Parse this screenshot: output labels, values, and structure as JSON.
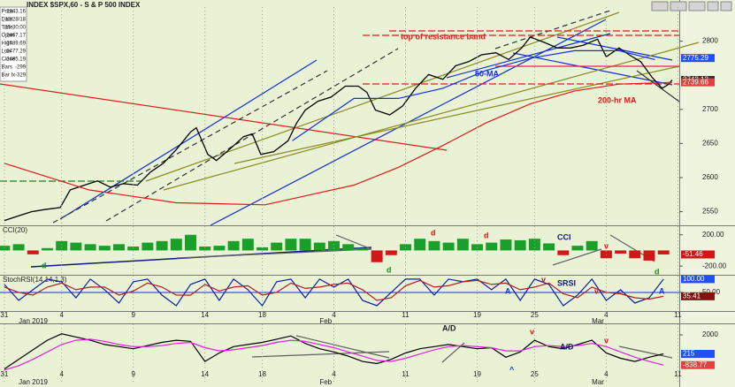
{
  "chart_data": [
    {
      "type": "line",
      "title": "INDEX $SPX,60 - S & P 500 INDEX",
      "info": [
        {
          "label": "Price",
          "value": 2843.16
        },
        {
          "label": "Date",
          "value": "12/28/18"
        },
        {
          "label": "Time",
          "value": "15:30:00"
        },
        {
          "label": "Open",
          "value": 2467.17
        },
        {
          "label": "High",
          "value": 2489.69
        },
        {
          "label": "Low",
          "value": 2477.29
        },
        {
          "label": "Close",
          "value": 2485.19
        },
        {
          "label": "Bars",
          "value": -299
        },
        {
          "label": "Bar Ix",
          "value": -329
        }
      ],
      "xlim": [
        -0.3,
        47.1
      ],
      "ylim": [
        2530,
        2850
      ],
      "yticks": [
        2550,
        2600,
        2650,
        2700,
        2800
      ],
      "series": [
        {
          "color": "#000000",
          "x": [
            0,
            1,
            1.9,
            2.8,
            3.9,
            4.6,
            5.6,
            6.5,
            7.4,
            8.3,
            9.3,
            10.2,
            11.1,
            12,
            13,
            13.4,
            14.2,
            14.8,
            15.7,
            16.7,
            17.3,
            17.9,
            18.8,
            19.8,
            20.4,
            21,
            21.9,
            22.8,
            23.8,
            24.7,
            25.3,
            25.9,
            26.9,
            27.8,
            28.7,
            29.6,
            30.6,
            31.5,
            32.4,
            33.3,
            34.3,
            35.2,
            36.1,
            36.7,
            37.7,
            38.6,
            39.5,
            40.4,
            41.4,
            42,
            42.9,
            43.6,
            44.4,
            45.2,
            45.9,
            46.3,
            46.6
          ],
          "values": [
            2537,
            2544,
            2550,
            2553,
            2556,
            2582,
            2589,
            2595,
            2586,
            2591,
            2589,
            2608,
            2621,
            2641,
            2667,
            2673,
            2634,
            2625,
            2641,
            2660,
            2664,
            2634,
            2638,
            2654,
            2680,
            2699,
            2712,
            2718,
            2734,
            2734,
            2725,
            2699,
            2692,
            2705,
            2731,
            2751,
            2744,
            2764,
            2770,
            2780,
            2783,
            2773,
            2790,
            2806,
            2798,
            2790,
            2790,
            2794,
            2803,
            2777,
            2790,
            2780,
            2770,
            2747,
            2731,
            2736,
            2743
          ]
        },
        {
          "name": "50-MA",
          "color": "#1030e0",
          "x": [
            20.1,
            24.4,
            27.5,
            30.6,
            33.6,
            36.7,
            39.8,
            42.9,
            45.4
          ],
          "values": [
            2654,
            2716,
            2716,
            2731,
            2757,
            2775,
            2786,
            2786,
            2773
          ]
        },
        {
          "name": "200-hr MA",
          "color": "#e01818",
          "x": [
            0,
            5.9,
            12,
            18.2,
            24.4,
            27.5,
            30.6,
            33.6,
            36.7,
            39.8,
            42.9,
            46.6
          ],
          "values": [
            2621,
            2582,
            2563,
            2560,
            2589,
            2615,
            2647,
            2680,
            2708,
            2727,
            2737,
            2739.66
          ]
        }
      ],
      "last_labels": [
        {
          "value": 2775.29,
          "color": "#2050f0"
        },
        {
          "value": 2743.13,
          "color": "#303030"
        },
        {
          "value": 2739.66,
          "color": "#e04040"
        }
      ],
      "annotations": [
        "top  of resistance band"
      ]
    },
    {
      "type": "bar",
      "title": "CCI(20)",
      "xlim": [
        -0.3,
        47.1
      ],
      "ylim": [
        -300,
        310
      ],
      "yticks": [
        {
          "value": 200,
          "label": "200.00"
        },
        {
          "value": -200,
          "label": "-200.00"
        }
      ],
      "series": [
        {
          "color": "#18a028",
          "negative_color": "#d01818",
          "x": [
            0,
            1,
            2,
            3,
            4,
            5,
            6,
            7,
            8,
            9,
            10,
            11,
            12,
            13,
            14,
            15,
            16,
            17,
            18,
            19,
            20,
            21,
            22,
            23,
            24,
            25,
            26,
            27,
            28,
            29,
            30,
            31,
            32,
            33,
            34,
            35,
            36,
            37,
            38,
            39,
            40,
            41,
            42,
            43,
            44,
            45,
            46
          ],
          "values": [
            60,
            80,
            -50,
            30,
            120,
            100,
            80,
            60,
            80,
            50,
            100,
            120,
            150,
            200,
            50,
            60,
            120,
            150,
            40,
            100,
            150,
            150,
            100,
            120,
            80,
            30,
            -150,
            -60,
            80,
            150,
            120,
            100,
            150,
            80,
            100,
            140,
            130,
            150,
            90,
            -60,
            60,
            120,
            -100,
            -40,
            -100,
            -130,
            -51.46
          ]
        }
      ],
      "last_labels": [
        {
          "value": -51.46,
          "color": "#d01818"
        }
      ],
      "annotations": [
        "d",
        "d",
        "d",
        "d",
        "CCI",
        "v",
        "d"
      ]
    },
    {
      "type": "line",
      "title": "StochRSI(14,14,1,3)",
      "xlim": [
        -0.3,
        47.1
      ],
      "ylim": [
        -20,
        113
      ],
      "grid": true,
      "yticks": [
        {
          "value": 50,
          "label": "50.00"
        }
      ],
      "xticks": [
        {
          "value": 0,
          "label": "31"
        },
        4,
        9,
        14,
        18,
        {
          "value": 23,
          "label": "4"
        },
        {
          "value": 28,
          "label": "11"
        },
        {
          "value": 33,
          "label": "19"
        },
        {
          "value": 37,
          "label": "25"
        },
        {
          "value": 42,
          "label": "4"
        },
        {
          "value": 47,
          "label": "11"
        }
      ],
      "month_ticks": [
        {
          "value": 1,
          "label": "Jan 2019"
        },
        {
          "value": 22,
          "label": "Feb"
        },
        {
          "value": 41,
          "label": "Mar"
        }
      ],
      "series": [
        {
          "color": "#1020a0",
          "x": [
            0,
            1,
            2,
            3,
            4,
            5,
            6,
            7,
            8,
            9,
            10,
            11,
            12,
            13,
            14,
            15,
            16,
            17,
            18,
            19,
            20,
            21,
            22,
            23,
            24,
            25,
            26,
            27,
            28,
            29,
            30,
            31,
            32,
            33,
            34,
            35,
            36,
            37,
            38,
            39,
            40,
            41,
            42,
            43,
            44,
            45,
            46
          ],
          "values": [
            80,
            20,
            60,
            100,
            90,
            30,
            100,
            60,
            10,
            90,
            100,
            40,
            0,
            80,
            100,
            20,
            100,
            60,
            0,
            90,
            100,
            30,
            100,
            70,
            100,
            20,
            0,
            50,
            100,
            100,
            40,
            100,
            90,
            100,
            60,
            100,
            20,
            100,
            80,
            0,
            40,
            100,
            20,
            60,
            10,
            30,
            100
          ]
        },
        {
          "color": "#b02020",
          "x": [
            0,
            1,
            2,
            3,
            4,
            5,
            6,
            7,
            8,
            9,
            10,
            11,
            12,
            13,
            14,
            15,
            16,
            17,
            18,
            19,
            20,
            21,
            22,
            23,
            24,
            25,
            26,
            27,
            28,
            29,
            30,
            31,
            32,
            33,
            34,
            35,
            36,
            37,
            38,
            39,
            40,
            41,
            42,
            43,
            44,
            45,
            46
          ],
          "values": [
            70,
            50,
            40,
            70,
            85,
            60,
            70,
            70,
            40,
            55,
            85,
            70,
            40,
            40,
            80,
            55,
            70,
            75,
            40,
            50,
            85,
            65,
            70,
            80,
            85,
            60,
            20,
            30,
            75,
            95,
            70,
            75,
            90,
            95,
            80,
            85,
            60,
            70,
            85,
            45,
            30,
            70,
            50,
            45,
            30,
            25,
            35.41
          ]
        }
      ],
      "last_labels": [
        {
          "value": 100,
          "label": "100.00",
          "color": "#2050f0"
        },
        {
          "value": 35.41,
          "color": "#8a1010"
        }
      ],
      "annotations": [
        "SRSI",
        "v",
        "A",
        "v",
        "A"
      ]
    },
    {
      "type": "line",
      "xlim": [
        -0.3,
        47.1
      ],
      "ylim": [
        -2400,
        3000
      ],
      "yticks": [
        2000
      ],
      "xticks": [
        {
          "value": 0,
          "label": "31"
        },
        4,
        9,
        14,
        18,
        {
          "value": 23,
          "label": "4"
        },
        {
          "value": 28,
          "label": "11"
        },
        {
          "value": 33,
          "label": "19"
        },
        {
          "value": 37,
          "label": "25"
        },
        {
          "value": 42,
          "label": "4"
        },
        {
          "value": 47,
          "label": "11"
        }
      ],
      "month_ticks": [
        {
          "value": 1,
          "label": "Jan 2019"
        },
        {
          "value": 22,
          "label": "Feb"
        },
        {
          "value": 41,
          "label": "Mar"
        }
      ],
      "series": [
        {
          "color": "#000000",
          "x": [
            0,
            1,
            2,
            3,
            4,
            5,
            6,
            7,
            8,
            9,
            10,
            11,
            12,
            13,
            14,
            15,
            16,
            17,
            18,
            19,
            20,
            21,
            22,
            23,
            24,
            25,
            26,
            27,
            28,
            29,
            30,
            31,
            32,
            33,
            34,
            35,
            36,
            37,
            38,
            39,
            40,
            41,
            42,
            43,
            44,
            45,
            46
          ],
          "values": [
            -1200,
            -300,
            600,
            1500,
            2100,
            1800,
            1500,
            1100,
            900,
            700,
            1000,
            1300,
            1500,
            1400,
            -500,
            300,
            900,
            1100,
            1300,
            1600,
            1900,
            1200,
            700,
            400,
            0,
            -500,
            -700,
            -300,
            300,
            700,
            900,
            1100,
            900,
            700,
            800,
            -100,
            400,
            1500,
            900,
            700,
            1100,
            1500,
            300,
            -200,
            -500,
            -100,
            215
          ]
        },
        {
          "color": "#e020e0",
          "x": [
            0,
            1,
            2,
            3,
            4,
            5,
            6,
            7,
            8,
            9,
            10,
            11,
            12,
            13,
            14,
            15,
            16,
            17,
            18,
            19,
            20,
            21,
            22,
            23,
            24,
            25,
            26,
            27,
            28,
            29,
            30,
            31,
            32,
            33,
            34,
            35,
            36,
            37,
            38,
            39,
            40,
            41,
            42,
            43,
            44,
            45,
            46
          ],
          "values": [
            -1300,
            -900,
            -300,
            400,
            1100,
            1500,
            1600,
            1400,
            1100,
            900,
            900,
            1000,
            1200,
            1300,
            800,
            500,
            600,
            800,
            1000,
            1300,
            1500,
            1400,
            1100,
            800,
            400,
            0,
            -400,
            -500,
            -200,
            200,
            600,
            900,
            1000,
            900,
            800,
            500,
            500,
            900,
            1000,
            900,
            1000,
            1200,
            900,
            400,
            -100,
            -500,
            -838.77
          ]
        }
      ],
      "last_labels": [
        {
          "value": 215,
          "color": "#2050f0"
        },
        {
          "value": -838.77,
          "color": "#e04040"
        }
      ],
      "annotations": [
        "A/D",
        "v",
        "A/D",
        "v",
        "^"
      ]
    }
  ]
}
